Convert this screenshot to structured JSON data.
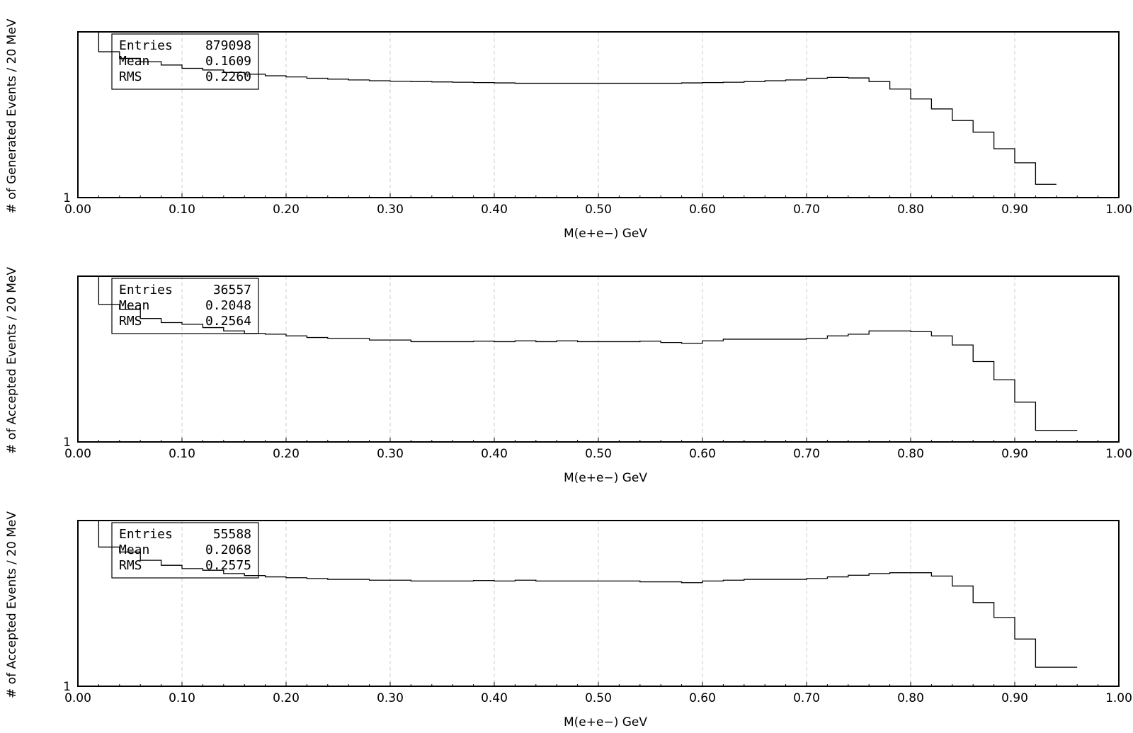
{
  "chart_data": [
    {
      "type": "histogram",
      "ylabel": "# of Generated Events / 20 MeV",
      "xlabel": "M(e+e−) GeV",
      "xlim": [
        0,
        1
      ],
      "x_tick_labels": [
        "0.00",
        "0.10",
        "0.20",
        "0.30",
        "0.40",
        "0.50",
        "0.60",
        "0.70",
        "0.80",
        "0.90",
        "1.00"
      ],
      "y_tick_labels": [
        "1"
      ],
      "y_scale": "log",
      "grid_x": true,
      "stats": [
        {
          "label": "Entries",
          "value": "879098"
        },
        {
          "label": "Mean",
          "value": "0.1609"
        },
        {
          "label": "RMS",
          "value": "0.2260"
        }
      ],
      "bin_width": 0.02,
      "bin_start": 0.0,
      "values": [
        1.0,
        0.88,
        0.84,
        0.82,
        0.8,
        0.78,
        0.77,
        0.755,
        0.745,
        0.735,
        0.728,
        0.72,
        0.715,
        0.71,
        0.705,
        0.702,
        0.7,
        0.698,
        0.696,
        0.694,
        0.692,
        0.69,
        0.69,
        0.69,
        0.69,
        0.69,
        0.69,
        0.69,
        0.69,
        0.692,
        0.694,
        0.696,
        0.7,
        0.705,
        0.71,
        0.72,
        0.725,
        0.722,
        0.7,
        0.655,
        0.595,
        0.535,
        0.465,
        0.395,
        0.295,
        0.21,
        0.08
      ]
    },
    {
      "type": "histogram",
      "ylabel": "# of Accepted Events / 20 MeV",
      "xlabel": "M(e+e−) GeV",
      "xlim": [
        0,
        1
      ],
      "x_tick_labels": [
        "0.00",
        "0.10",
        "0.20",
        "0.30",
        "0.40",
        "0.50",
        "0.60",
        "0.70",
        "0.80",
        "0.90",
        "1.00"
      ],
      "y_tick_labels": [
        "1"
      ],
      "y_scale": "log",
      "grid_x": true,
      "stats": [
        {
          "label": "Entries",
          "value": "36557"
        },
        {
          "label": "Mean",
          "value": "0.2048"
        },
        {
          "label": "RMS",
          "value": "0.2564"
        }
      ],
      "bin_width": 0.02,
      "bin_start": 0.0,
      "values": [
        1.0,
        0.83,
        0.8,
        0.745,
        0.72,
        0.71,
        0.69,
        0.67,
        0.655,
        0.65,
        0.64,
        0.63,
        0.625,
        0.625,
        0.615,
        0.615,
        0.605,
        0.605,
        0.605,
        0.608,
        0.605,
        0.61,
        0.605,
        0.61,
        0.605,
        0.605,
        0.605,
        0.608,
        0.6,
        0.595,
        0.61,
        0.62,
        0.62,
        0.62,
        0.62,
        0.625,
        0.64,
        0.65,
        0.67,
        0.67,
        0.665,
        0.64,
        0.585,
        0.485,
        0.375,
        0.24,
        0.07,
        0.07
      ]
    },
    {
      "type": "histogram",
      "ylabel": "# of Accepted Events / 20 MeV",
      "xlabel": "M(e+e−) GeV",
      "xlim": [
        0,
        1
      ],
      "x_tick_labels": [
        "0.00",
        "0.10",
        "0.20",
        "0.30",
        "0.40",
        "0.50",
        "0.60",
        "0.70",
        "0.80",
        "0.90",
        "1.00"
      ],
      "y_tick_labels": [
        "1"
      ],
      "y_scale": "log",
      "grid_x": true,
      "stats": [
        {
          "label": "Entries",
          "value": "55588"
        },
        {
          "label": "Mean",
          "value": "0.2068"
        },
        {
          "label": "RMS",
          "value": "0.2575"
        }
      ],
      "bin_width": 0.02,
      "bin_start": 0.0,
      "values": [
        1.0,
        0.84,
        0.81,
        0.76,
        0.73,
        0.71,
        0.7,
        0.68,
        0.668,
        0.66,
        0.655,
        0.65,
        0.645,
        0.645,
        0.64,
        0.64,
        0.635,
        0.635,
        0.635,
        0.638,
        0.635,
        0.64,
        0.635,
        0.635,
        0.635,
        0.635,
        0.635,
        0.63,
        0.63,
        0.625,
        0.635,
        0.64,
        0.645,
        0.645,
        0.645,
        0.65,
        0.66,
        0.67,
        0.68,
        0.685,
        0.685,
        0.665,
        0.605,
        0.505,
        0.415,
        0.285,
        0.115,
        0.115
      ]
    }
  ]
}
